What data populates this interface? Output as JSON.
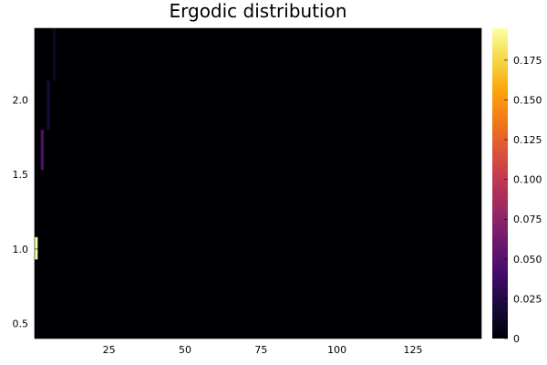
{
  "chart_data": {
    "type": "heatmap",
    "title": "Ergodic distribution",
    "xlabel": "",
    "ylabel": "",
    "x_range": [
      0.5,
      147.5
    ],
    "y_range": [
      0.4,
      2.48
    ],
    "x_ticks": [
      25,
      50,
      75,
      100,
      125
    ],
    "y_ticks": [
      0.5,
      1.0,
      1.5,
      2.0
    ],
    "x_tick_labels": [
      "25",
      "50",
      "75",
      "100",
      "125"
    ],
    "y_tick_labels": [
      "0.5",
      "1.0",
      "1.5",
      "2.0"
    ],
    "colorbar": {
      "colormap": "inferno",
      "range": [
        0,
        0.195
      ],
      "ticks": [
        0,
        0.025,
        0.05,
        0.075,
        0.1,
        0.125,
        0.15,
        0.175
      ],
      "tick_labels": [
        "0",
        "0.025",
        "0.050",
        "0.075",
        "0.100",
        "0.125",
        "0.150",
        "0.175"
      ]
    },
    "background_value": 0,
    "cells": [
      {
        "x": 1,
        "y_min": 0.93,
        "y_max": 1.08,
        "value": 0.195
      },
      {
        "x": 3,
        "y_min": 1.53,
        "y_max": 1.8,
        "value": 0.045
      },
      {
        "x": 5,
        "y_min": 1.8,
        "y_max": 2.13,
        "value": 0.02
      },
      {
        "x": 7,
        "y_min": 2.13,
        "y_max": 2.48,
        "value": 0.012
      }
    ],
    "grid": false,
    "legend": "none"
  }
}
